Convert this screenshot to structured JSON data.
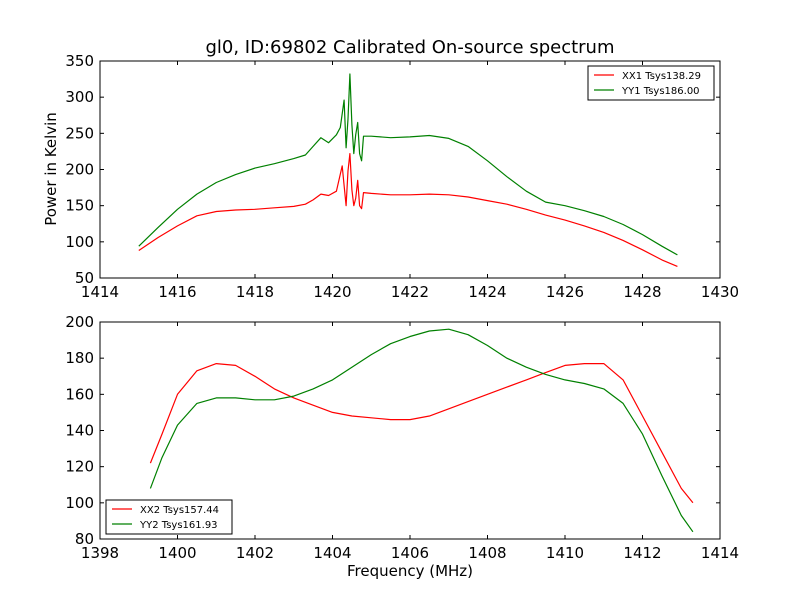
{
  "figure": {
    "title": "gl0, ID:69802 Calibrated On-source spectrum",
    "xlabel": "Frequency (MHz)",
    "ylabel": "Power in Kelvin"
  },
  "chart_data": [
    {
      "type": "line",
      "title": "gl0, ID:69802 Calibrated On-source spectrum",
      "xlabel": "",
      "ylabel": "Power in Kelvin",
      "xlim": [
        1414,
        1430
      ],
      "ylim": [
        50,
        350
      ],
      "xticks": [
        1414,
        1416,
        1418,
        1420,
        1422,
        1424,
        1426,
        1428,
        1430
      ],
      "yticks": [
        50,
        100,
        150,
        200,
        250,
        300,
        350
      ],
      "legend_position": "top-right",
      "grid": false,
      "series": [
        {
          "name": "XX1 Tsys138.29",
          "color": "#ff0000",
          "x": [
            1415.0,
            1415.5,
            1416.0,
            1416.5,
            1417.0,
            1417.5,
            1418.0,
            1418.5,
            1419.0,
            1419.3,
            1419.5,
            1419.7,
            1419.9,
            1420.1,
            1420.25,
            1420.3,
            1420.35,
            1420.4,
            1420.45,
            1420.5,
            1420.55,
            1420.6,
            1420.65,
            1420.7,
            1420.75,
            1420.8,
            1421.0,
            1421.5,
            1422.0,
            1422.5,
            1423.0,
            1423.5,
            1424.0,
            1424.5,
            1425.0,
            1425.5,
            1426.0,
            1426.5,
            1427.0,
            1427.5,
            1428.0,
            1428.5,
            1428.9
          ],
          "y": [
            88,
            106,
            122,
            136,
            142,
            144,
            145,
            147,
            149,
            152,
            158,
            166,
            164,
            170,
            205,
            178,
            150,
            198,
            222,
            172,
            150,
            160,
            185,
            150,
            146,
            168,
            167,
            165,
            165,
            166,
            165,
            162,
            157,
            152,
            145,
            137,
            130,
            122,
            113,
            102,
            89,
            75,
            66
          ]
        },
        {
          "name": "YY1 Tsys186.00",
          "color": "#008000",
          "x": [
            1415.0,
            1415.5,
            1416.0,
            1416.5,
            1417.0,
            1417.5,
            1418.0,
            1418.5,
            1419.0,
            1419.3,
            1419.5,
            1419.7,
            1419.9,
            1420.1,
            1420.2,
            1420.3,
            1420.35,
            1420.4,
            1420.45,
            1420.5,
            1420.55,
            1420.6,
            1420.65,
            1420.7,
            1420.75,
            1420.8,
            1421.0,
            1421.5,
            1422.0,
            1422.5,
            1423.0,
            1423.5,
            1424.0,
            1424.5,
            1425.0,
            1425.5,
            1426.0,
            1426.5,
            1427.0,
            1427.5,
            1428.0,
            1428.5,
            1428.9
          ],
          "y": [
            94,
            120,
            145,
            166,
            182,
            193,
            202,
            208,
            215,
            220,
            232,
            244,
            237,
            248,
            258,
            296,
            230,
            270,
            332,
            262,
            222,
            248,
            265,
            222,
            212,
            246,
            246,
            244,
            245,
            247,
            243,
            232,
            212,
            190,
            170,
            155,
            150,
            143,
            135,
            124,
            110,
            94,
            82
          ]
        }
      ]
    },
    {
      "type": "line",
      "title": "",
      "xlabel": "Frequency (MHz)",
      "ylabel": "",
      "xlim": [
        1398,
        1414
      ],
      "ylim": [
        80,
        200
      ],
      "xticks": [
        1398,
        1400,
        1402,
        1404,
        1406,
        1408,
        1410,
        1412,
        1414
      ],
      "yticks": [
        80,
        100,
        120,
        140,
        160,
        180,
        200
      ],
      "legend_position": "bottom-left",
      "grid": false,
      "series": [
        {
          "name": "XX2 Tsys157.44",
          "color": "#ff0000",
          "x": [
            1399.3,
            1399.6,
            1400.0,
            1400.5,
            1401.0,
            1401.5,
            1402.0,
            1402.5,
            1403.0,
            1403.5,
            1404.0,
            1404.5,
            1405.0,
            1405.5,
            1406.0,
            1406.5,
            1407.0,
            1407.5,
            1408.0,
            1408.5,
            1409.0,
            1409.5,
            1410.0,
            1410.5,
            1411.0,
            1411.5,
            1412.0,
            1412.5,
            1413.0,
            1413.3
          ],
          "y": [
            122,
            138,
            160,
            173,
            177,
            176,
            170,
            163,
            158,
            154,
            150,
            148,
            147,
            146,
            146,
            148,
            152,
            156,
            160,
            164,
            168,
            172,
            176,
            177,
            177,
            168,
            148,
            128,
            108,
            100
          ]
        },
        {
          "name": "YY2 Tsys161.93",
          "color": "#008000",
          "x": [
            1399.3,
            1399.6,
            1400.0,
            1400.5,
            1401.0,
            1401.5,
            1402.0,
            1402.5,
            1403.0,
            1403.5,
            1404.0,
            1404.5,
            1405.0,
            1405.5,
            1406.0,
            1406.5,
            1407.0,
            1407.5,
            1408.0,
            1408.5,
            1409.0,
            1409.5,
            1410.0,
            1410.5,
            1411.0,
            1411.5,
            1412.0,
            1412.5,
            1413.0,
            1413.3
          ],
          "y": [
            108,
            125,
            143,
            155,
            158,
            158,
            157,
            157,
            159,
            163,
            168,
            175,
            182,
            188,
            192,
            195,
            196,
            193,
            187,
            180,
            175,
            171,
            168,
            166,
            163,
            155,
            138,
            115,
            93,
            84
          ]
        }
      ]
    }
  ]
}
